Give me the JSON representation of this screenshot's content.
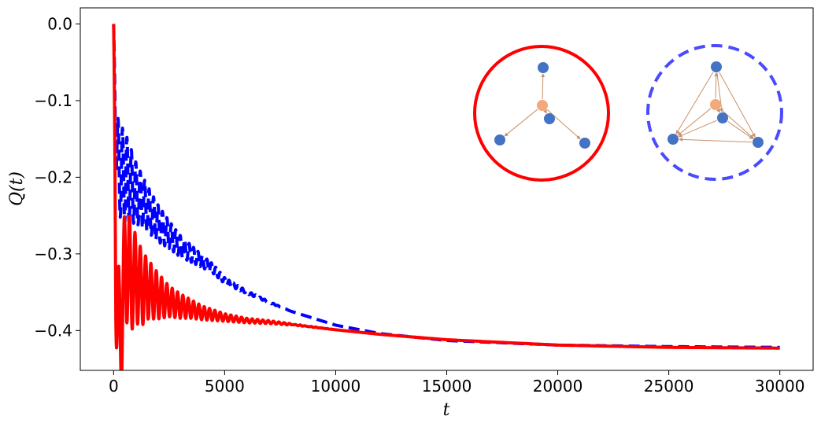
{
  "chart_data": {
    "type": "line",
    "title": "",
    "xlabel": "t",
    "ylabel": "Q(t)",
    "xlim": [
      -1500,
      31500
    ],
    "ylim": [
      -0.452,
      0.021
    ],
    "xticks": [
      0,
      5000,
      10000,
      15000,
      20000,
      25000,
      30000
    ],
    "xtick_labels": [
      "0",
      "5000",
      "10000",
      "15000",
      "20000",
      "25000",
      "30000"
    ],
    "yticks": [
      0.0,
      -0.1,
      -0.2,
      -0.3,
      -0.4
    ],
    "ytick_labels": [
      "0.0",
      "−0.1",
      "−0.2",
      "−0.3",
      "−0.4"
    ],
    "grid": false,
    "legend": "none",
    "series": [
      {
        "color": "#ff0000",
        "style": "solid",
        "x": [
          0,
          100,
          250,
          400,
          600,
          800,
          1000,
          1250,
          1500,
          2000,
          2500,
          3000,
          3500,
          4000,
          5000,
          6000,
          7000,
          8000,
          10000,
          12000,
          15000,
          20000,
          25000,
          30000
        ],
        "y": [
          0.0,
          -0.3,
          -0.43,
          -0.36,
          -0.3,
          -0.34,
          -0.33,
          -0.345,
          -0.345,
          -0.355,
          -0.362,
          -0.368,
          -0.372,
          -0.377,
          -0.383,
          -0.387,
          -0.389,
          -0.392,
          -0.399,
          -0.405,
          -0.412,
          -0.419,
          -0.422,
          -0.423
        ],
        "amp": [
          0,
          0.1,
          0.1,
          0.08,
          0.09,
          0.06,
          0.06,
          0.05,
          0.04,
          0.03,
          0.02,
          0.016,
          0.012,
          0.009,
          0.005,
          0.003,
          0.002,
          0.001,
          0,
          0,
          0,
          0,
          0,
          0
        ],
        "period": 240
      },
      {
        "color": "#0000ff",
        "style": "dashed",
        "x": [
          0,
          100,
          250,
          500,
          750,
          1000,
          1500,
          2000,
          2500,
          3000,
          3500,
          4000,
          4500,
          5000,
          6000,
          7000,
          8000,
          10000,
          12000,
          15000,
          20000,
          25000,
          30000
        ],
        "y": [
          0.0,
          -0.15,
          -0.19,
          -0.2,
          -0.21,
          -0.22,
          -0.24,
          -0.26,
          -0.275,
          -0.29,
          -0.3,
          -0.31,
          -0.32,
          -0.335,
          -0.35,
          -0.363,
          -0.375,
          -0.393,
          -0.404,
          -0.413,
          -0.419,
          -0.421,
          -0.422
        ],
        "amp": [
          0,
          0.04,
          0.06,
          0.06,
          0.05,
          0.04,
          0.03,
          0.024,
          0.018,
          0.014,
          0.011,
          0.008,
          0.006,
          0.004,
          0.002,
          0.001,
          0,
          0,
          0,
          0,
          0,
          0,
          0
        ],
        "period": 200
      }
    ],
    "insets": [
      {
        "ring_color": "#ff0000",
        "ring_style": "solid",
        "center_node_color": "#f4a97a",
        "node_color": "#4472c4",
        "edge_color": "#c8906a",
        "edges": "star"
      },
      {
        "ring_color": "#4a4aff",
        "ring_style": "dashed",
        "center_node_color": "#f4a97a",
        "node_color": "#4472c4",
        "edge_color": "#c8906a",
        "edges": "complete"
      }
    ]
  }
}
